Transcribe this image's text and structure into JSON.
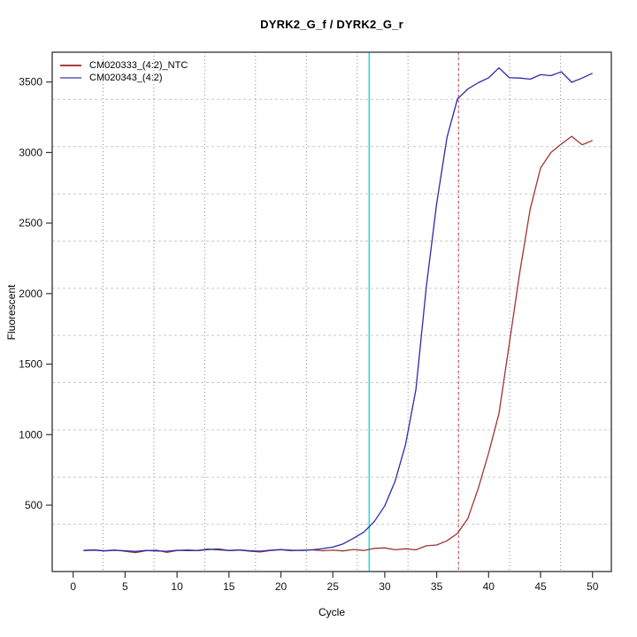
{
  "chart": {
    "title": "DYRK2_G_f / DYRK2_G_r",
    "xlabel": "Cycle",
    "ylabel": "Fluorescent"
  },
  "legend": {
    "items": [
      {
        "label": "CM020333_(4:2)_NTC",
        "color": "#a84040"
      },
      {
        "label": "CM020343_(4:2)",
        "color": "#8484cc"
      }
    ]
  },
  "chart_data": {
    "type": "line",
    "title": "DYRK2_G_f / DYRK2_G_r",
    "xlabel": "Cycle",
    "ylabel": "Fluorescent",
    "x_ticks": [
      0,
      5,
      10,
      15,
      20,
      25,
      30,
      35,
      40,
      45,
      50
    ],
    "y_ticks": [
      500,
      1000,
      1500,
      2000,
      2500,
      3000,
      3500
    ],
    "xlim": [
      -2,
      52
    ],
    "ylim": [
      30,
      3720
    ],
    "grid": {
      "style": "dotted",
      "nx": 11,
      "ny": 11
    },
    "legend_position": "top-left",
    "x_start": 1,
    "series": [
      {
        "name": "CM020333_(4:2)_NTC",
        "color": "#9e3434",
        "values": [
          180,
          183,
          177,
          182,
          173,
          164,
          177,
          181,
          166,
          179,
          182,
          178,
          185,
          190,
          178,
          182,
          174,
          168,
          179,
          184,
          177,
          181,
          183,
          177,
          181,
          176,
          186,
          179,
          194,
          197,
          184,
          191,
          183,
          212,
          218,
          248,
          300,
          405,
          620,
          870,
          1150,
          1650,
          2150,
          2600,
          2890,
          3000,
          3060,
          3115,
          3055,
          3085
        ]
      },
      {
        "name": "CM020343_(4:2)",
        "color": "#2b2ba8",
        "values": [
          178,
          181,
          176,
          180,
          177,
          172,
          179,
          176,
          173,
          180,
          178,
          179,
          188,
          183,
          179,
          182,
          177,
          174,
          181,
          186,
          181,
          179,
          183,
          192,
          203,
          226,
          266,
          310,
          385,
          495,
          670,
          930,
          1320,
          2050,
          2640,
          3110,
          3380,
          3450,
          3495,
          3530,
          3600,
          3530,
          3528,
          3520,
          3552,
          3545,
          3572,
          3498,
          3528,
          3562
        ]
      }
    ],
    "vlines": [
      {
        "x": 28.5,
        "color": "#00e5e5",
        "style": "solid",
        "name": "cyan-threshold-line"
      },
      {
        "x": 37.1,
        "color": "#cd7373",
        "style": "dashed",
        "name": "red-ct-marker-line"
      }
    ]
  }
}
